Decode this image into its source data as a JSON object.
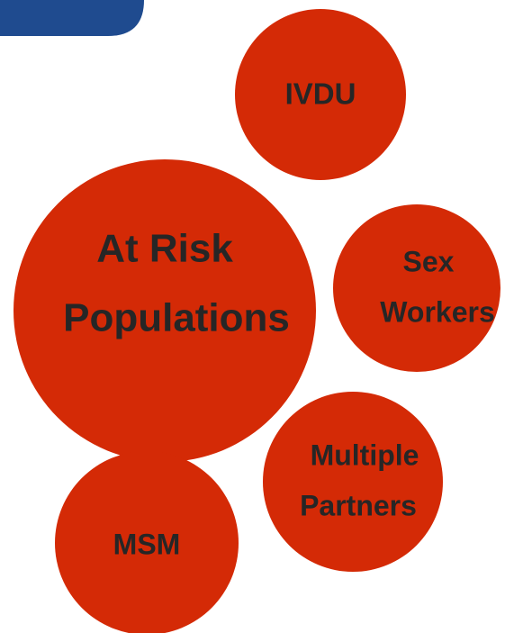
{
  "nodes": [
    {
      "lines": [
        "IVDU"
      ]
    },
    {
      "lines": [
        "At Risk",
        "Populations"
      ]
    },
    {
      "lines": [
        "Sex",
        "Workers"
      ]
    },
    {
      "lines": [
        "Multiple",
        "Partners"
      ]
    },
    {
      "lines": [
        "MSM"
      ]
    }
  ]
}
